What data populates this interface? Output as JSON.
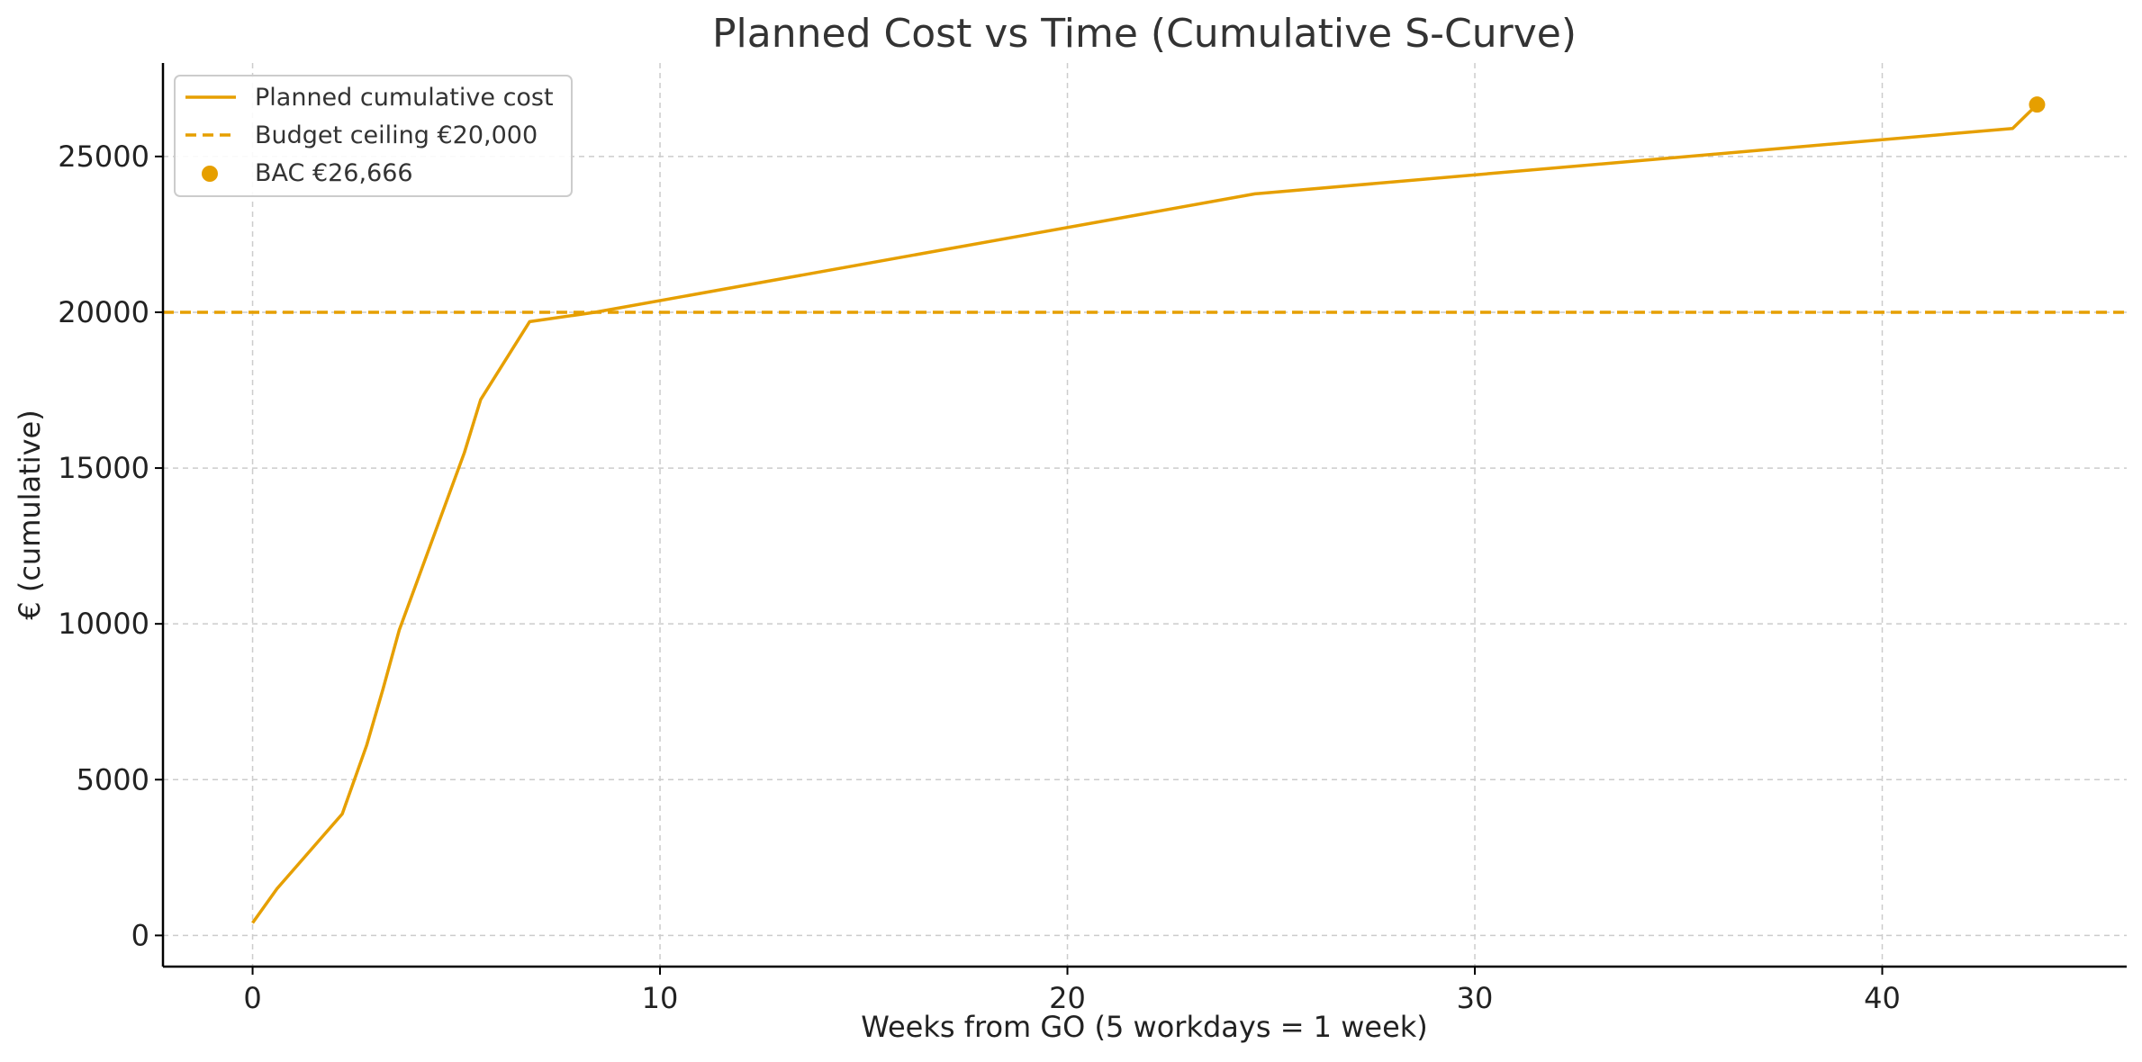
{
  "chart_data": {
    "type": "line",
    "title": "Planned Cost vs Time (Cumulative S-Curve)",
    "xlabel": "Weeks from GO (5 workdays = 1 week)",
    "ylabel": "€ (cumulative)",
    "xlim": [
      -2.2,
      46.0
    ],
    "ylim": [
      -1000,
      28000
    ],
    "x_ticks": [
      0,
      10,
      20,
      30,
      40
    ],
    "y_ticks": [
      0,
      5000,
      10000,
      15000,
      20000,
      25000
    ],
    "grid": true,
    "legend_position": "top-left",
    "colors": {
      "series": "#E69F00",
      "grid": "#cccccc",
      "axis": "#000000",
      "title": "#333333"
    },
    "series": [
      {
        "name": "Planned cumulative cost",
        "style": "solid",
        "x": [
          0,
          0.6,
          2.2,
          2.8,
          3.2,
          3.6,
          5.2,
          5.6,
          6.8,
          8.4,
          24.6,
          43.2,
          43.8
        ],
        "y": [
          400,
          1500,
          3900,
          6100,
          7900,
          9800,
          15500,
          17200,
          19700,
          20000,
          23800,
          25900,
          26666
        ]
      }
    ],
    "reference_lines": [
      {
        "name": "Budget ceiling €20,000",
        "orientation": "horizontal",
        "style": "dashed",
        "y": 20000
      }
    ],
    "points": [
      {
        "name": "BAC €26,666",
        "x": 43.8,
        "y": 26666
      }
    ]
  }
}
